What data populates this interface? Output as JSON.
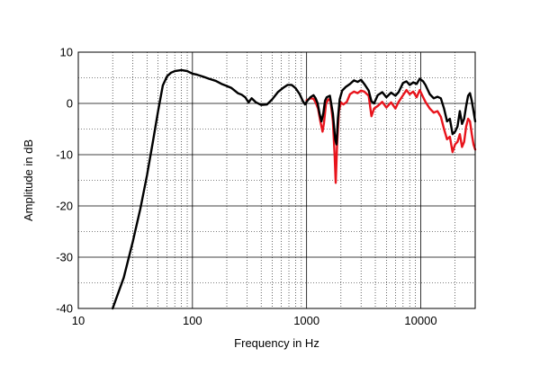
{
  "chart_data": {
    "type": "line",
    "title": "",
    "xlabel": "Frequency in Hz",
    "ylabel": "Amplitude in dB",
    "xscale": "log",
    "xlim": [
      10,
      30000
    ],
    "ylim": [
      -40,
      10
    ],
    "grid": true,
    "x_ticks": [
      10,
      100,
      1000,
      10000
    ],
    "x_tick_labels": [
      "10",
      "100",
      "1000",
      "10000"
    ],
    "y_ticks": [
      10,
      0,
      -10,
      -20,
      -30,
      -40
    ],
    "y_tick_labels": [
      "10",
      "0",
      "-10",
      "-20",
      "-30",
      "-40"
    ],
    "series": [
      {
        "color": "#000000",
        "points": [
          [
            20,
            -40
          ],
          [
            25,
            -34
          ],
          [
            30,
            -27
          ],
          [
            35,
            -20.5
          ],
          [
            40,
            -14
          ],
          [
            45,
            -7.5
          ],
          [
            50,
            -1.5
          ],
          [
            55,
            3.5
          ],
          [
            60,
            5.3
          ],
          [
            65,
            6.0
          ],
          [
            70,
            6.3
          ],
          [
            80,
            6.5
          ],
          [
            90,
            6.3
          ],
          [
            100,
            5.8
          ],
          [
            110,
            5.6
          ],
          [
            125,
            5.2
          ],
          [
            140,
            4.8
          ],
          [
            160,
            4.4
          ],
          [
            180,
            3.8
          ],
          [
            200,
            3.4
          ],
          [
            220,
            3.0
          ],
          [
            250,
            2.0
          ],
          [
            270,
            1.7
          ],
          [
            290,
            1.2
          ],
          [
            310,
            0.2
          ],
          [
            330,
            1.0
          ],
          [
            360,
            0.2
          ],
          [
            400,
            -0.3
          ],
          [
            450,
            -0.2
          ],
          [
            500,
            0.8
          ],
          [
            560,
            2.2
          ],
          [
            620,
            3.0
          ],
          [
            680,
            3.6
          ],
          [
            740,
            3.6
          ],
          [
            800,
            3.0
          ],
          [
            870,
            1.8
          ],
          [
            930,
            0.4
          ],
          [
            970,
            -0.2
          ],
          [
            1000,
            0.3
          ],
          [
            1080,
            1.2
          ],
          [
            1150,
            1.6
          ],
          [
            1200,
            1.0
          ],
          [
            1250,
            0
          ],
          [
            1300,
            -2.0
          ],
          [
            1350,
            -3.5
          ],
          [
            1400,
            -2.0
          ],
          [
            1450,
            0.5
          ],
          [
            1500,
            1.2
          ],
          [
            1600,
            1.5
          ],
          [
            1700,
            -2
          ],
          [
            1780,
            -7
          ],
          [
            1830,
            -8
          ],
          [
            1880,
            -3
          ],
          [
            1950,
            0.8
          ],
          [
            2050,
            2.5
          ],
          [
            2200,
            3.2
          ],
          [
            2400,
            3.8
          ],
          [
            2600,
            4.5
          ],
          [
            2800,
            4.2
          ],
          [
            3000,
            4.6
          ],
          [
            3200,
            3.8
          ],
          [
            3500,
            2.5
          ],
          [
            3700,
            0.4
          ],
          [
            3900,
            0
          ],
          [
            4200,
            1.6
          ],
          [
            4600,
            2.2
          ],
          [
            5000,
            1.2
          ],
          [
            5500,
            2.1
          ],
          [
            6000,
            1.5
          ],
          [
            6400,
            2.2
          ],
          [
            7000,
            4.0
          ],
          [
            7500,
            4.3
          ],
          [
            8000,
            3.6
          ],
          [
            8600,
            4.1
          ],
          [
            9200,
            3.8
          ],
          [
            9800,
            4.8
          ],
          [
            10500,
            4.3
          ],
          [
            11000,
            3.6
          ],
          [
            12000,
            1.8
          ],
          [
            13000,
            1.0
          ],
          [
            14000,
            1.3
          ],
          [
            15000,
            1.0
          ],
          [
            16000,
            -1.0
          ],
          [
            17000,
            -3.5
          ],
          [
            18000,
            -3.0
          ],
          [
            19000,
            -6.0
          ],
          [
            20000,
            -5.5
          ],
          [
            21000,
            -4.5
          ],
          [
            22000,
            -1.5
          ],
          [
            23000,
            -4.0
          ],
          [
            24000,
            -3.0
          ],
          [
            25000,
            -0.5
          ],
          [
            26000,
            1.5
          ],
          [
            27000,
            2.0
          ],
          [
            28000,
            0.5
          ],
          [
            29000,
            -1.5
          ],
          [
            30000,
            -3.5
          ]
        ]
      },
      {
        "color": "#e8141c",
        "points": [
          [
            1000,
            0.6
          ],
          [
            1080,
            1.0
          ],
          [
            1150,
            0.9
          ],
          [
            1200,
            0.2
          ],
          [
            1260,
            -1.0
          ],
          [
            1320,
            -3.5
          ],
          [
            1380,
            -5.5
          ],
          [
            1420,
            -3.8
          ],
          [
            1480,
            0
          ],
          [
            1550,
            0.8
          ],
          [
            1620,
            0.5
          ],
          [
            1700,
            -3.5
          ],
          [
            1760,
            -10.0
          ],
          [
            1800,
            -15.5
          ],
          [
            1850,
            -8.0
          ],
          [
            1920,
            -1.5
          ],
          [
            2000,
            0.2
          ],
          [
            2100,
            -0.2
          ],
          [
            2250,
            0.3
          ],
          [
            2400,
            1.8
          ],
          [
            2600,
            2.3
          ],
          [
            2800,
            2.0
          ],
          [
            3000,
            2.5
          ],
          [
            3200,
            2.3
          ],
          [
            3500,
            1.5
          ],
          [
            3700,
            -2.5
          ],
          [
            3900,
            -1.0
          ],
          [
            4200,
            -0.5
          ],
          [
            4600,
            0.3
          ],
          [
            5000,
            -0.8
          ],
          [
            5500,
            0.2
          ],
          [
            6000,
            -1.0
          ],
          [
            6400,
            0.3
          ],
          [
            7000,
            1.6
          ],
          [
            7500,
            2.6
          ],
          [
            8000,
            1.8
          ],
          [
            8600,
            2.3
          ],
          [
            9200,
            1.2
          ],
          [
            9800,
            2.6
          ],
          [
            10500,
            1.2
          ],
          [
            11000,
            0.3
          ],
          [
            12000,
            -1.0
          ],
          [
            13000,
            -1.8
          ],
          [
            14000,
            -1.5
          ],
          [
            15000,
            -2.6
          ],
          [
            16000,
            -5.0
          ],
          [
            17000,
            -7.0
          ],
          [
            18000,
            -6.5
          ],
          [
            19000,
            -9.5
          ],
          [
            20000,
            -8.0
          ],
          [
            21000,
            -7.5
          ],
          [
            22000,
            -6.0
          ],
          [
            23000,
            -8.5
          ],
          [
            24000,
            -7.5
          ],
          [
            25000,
            -4.5
          ],
          [
            26000,
            -3.0
          ],
          [
            27000,
            -3.5
          ],
          [
            28000,
            -6.0
          ],
          [
            29000,
            -8.0
          ],
          [
            30000,
            -9.0
          ]
        ]
      }
    ]
  }
}
